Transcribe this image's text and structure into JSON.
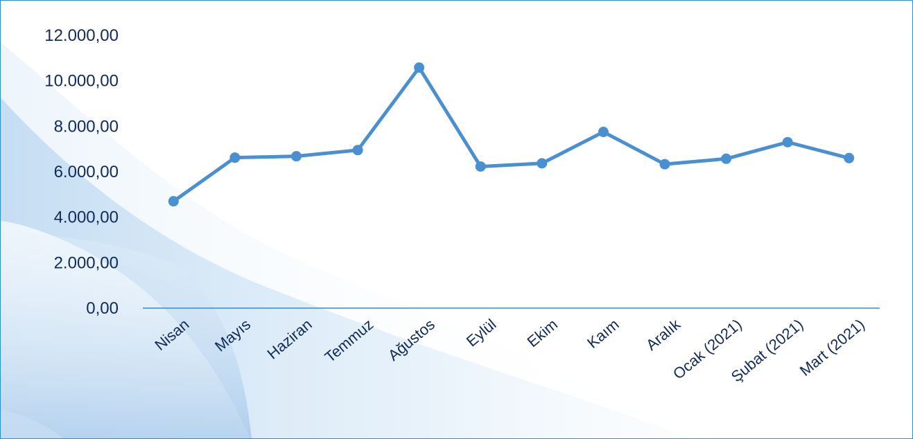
{
  "chart_data": {
    "type": "line",
    "categories": [
      "Nisan",
      "Mayıs",
      "Haziran",
      "Temmuz",
      "Ağustos",
      "Eylül",
      "Ekim",
      "Kaım",
      "Aralık",
      "Ocak (2021)",
      "Şubat (2021)",
      "Mart (2021)"
    ],
    "series": [
      {
        "values": [
          4700,
          6620,
          6680,
          6950,
          10580,
          6230,
          6370,
          7750,
          6330,
          6570,
          7300,
          6600
        ]
      }
    ],
    "y_tick_labels": [
      "0,00",
      "2.000,00",
      "4.000,00",
      "6.000,00",
      "8.000,00",
      "10.000,00",
      "12.000,00"
    ],
    "y_ticks": [
      0,
      2000,
      4000,
      6000,
      8000,
      10000,
      12000
    ],
    "ylim": [
      0,
      12000
    ],
    "grid": false,
    "colors": {
      "line": "#4a90d0",
      "axis": "#2a8fd0",
      "text": "#102a5c",
      "frame": "#2a8fd0"
    }
  }
}
